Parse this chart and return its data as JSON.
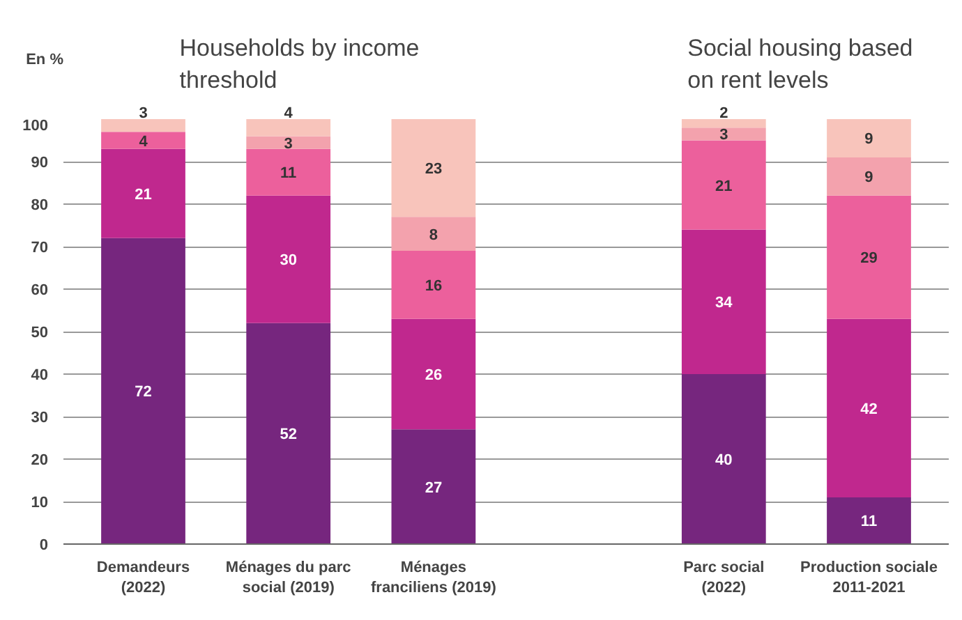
{
  "chart_data": {
    "type": "bar",
    "stacked": true,
    "ylabel": "En %",
    "categories": [
      "Demandeurs\n(2022)",
      "Ménages du parc\nsocial (2019)",
      "Ménages\nfranciliens (2019)",
      null,
      "Parc social\n(2022)",
      "Production sociale\n2011-2021"
    ],
    "series": [
      {
        "color": "#76267e",
        "values": [
          72,
          52,
          27,
          null,
          40,
          11
        ]
      },
      {
        "color": "#c0288e",
        "values": [
          21,
          30,
          26,
          null,
          34,
          42
        ]
      },
      {
        "color": "#ec609c",
        "values": [
          4,
          11,
          16,
          null,
          21,
          29
        ]
      },
      {
        "color": "#f3a2ad",
        "values": [
          null,
          3,
          8,
          null,
          3,
          9
        ]
      },
      {
        "color": "#f8c4bb",
        "values": [
          3,
          4,
          23,
          null,
          2,
          9
        ]
      }
    ],
    "ylim": [
      0,
      100
    ],
    "yticks": [
      0,
      10,
      20,
      30,
      40,
      50,
      60,
      70,
      80,
      90,
      100
    ],
    "grid": "y",
    "data_labels": true,
    "annotations": [
      "Households by income\nthreshold",
      "Social housing based\non rent levels"
    ]
  }
}
